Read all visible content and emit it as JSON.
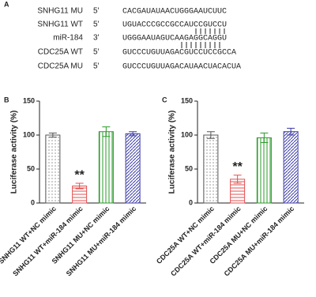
{
  "panel_a": {
    "label": "A",
    "rows": [
      {
        "name": "SNHG11 MU",
        "end": "5'",
        "sequence": "CACGAUAUAACUGGGAAUCUUC"
      },
      {
        "name": "SNHG11 WT",
        "end": "5'",
        "sequence": "UGUACCCGCCGCCAUCCGUCCU"
      },
      {
        "name": "miR-184",
        "end": "3'",
        "sequence": "UGGGAAUAGUCAAGAGGCAGGU"
      },
      {
        "name": "CDC25A WT",
        "end": "5'",
        "sequence": "GUCCCUGUUAGACGUCCUCCGCCA"
      },
      {
        "name": "CDC25A MU",
        "end": "5'",
        "sequence": "GUCCCUGUUAGACAUAACUACACUA"
      }
    ]
  },
  "chart_data": [
    {
      "type": "bar",
      "panel_label": "B",
      "y_label": "Luciferase activity (%)",
      "categories": [
        "SNHG11 WT+NC mimic",
        "SNHG11 WT+miR-184 mimic",
        "SNHG11 MU+NC mimic",
        "SNHG11 MU+miR-184 mimic"
      ],
      "values": [
        100,
        25,
        105,
        102
      ],
      "errors": [
        3,
        4,
        7,
        3
      ],
      "annotations": [
        null,
        "**",
        null,
        null
      ],
      "colors": [
        "#555555",
        "#e05050",
        "#2a9a2a",
        "#3a3aa8"
      ],
      "patterns": [
        "dots",
        "hlines",
        "vlines",
        "diagonal"
      ],
      "ylim": [
        0,
        150
      ],
      "yticks": [
        0,
        50,
        100,
        150
      ]
    },
    {
      "type": "bar",
      "panel_label": "C",
      "y_label": "Luciferase activity (%)",
      "categories": [
        "CDC25A WT+NC mimic",
        "CDC25A WT+miR-184 mimic",
        "CDC25A MU+NC mimic",
        "CDC25A MU+miR-184 mimic"
      ],
      "values": [
        100,
        35,
        96,
        105
      ],
      "errors": [
        5,
        6,
        7,
        5
      ],
      "annotations": [
        null,
        "**",
        null,
        null
      ],
      "colors": [
        "#555555",
        "#e05050",
        "#2a9a2a",
        "#3a3aa8"
      ],
      "patterns": [
        "dots",
        "hlines",
        "vlines",
        "diagonal"
      ],
      "ylim": [
        0,
        150
      ],
      "yticks": [
        0,
        50,
        100,
        150
      ]
    }
  ]
}
